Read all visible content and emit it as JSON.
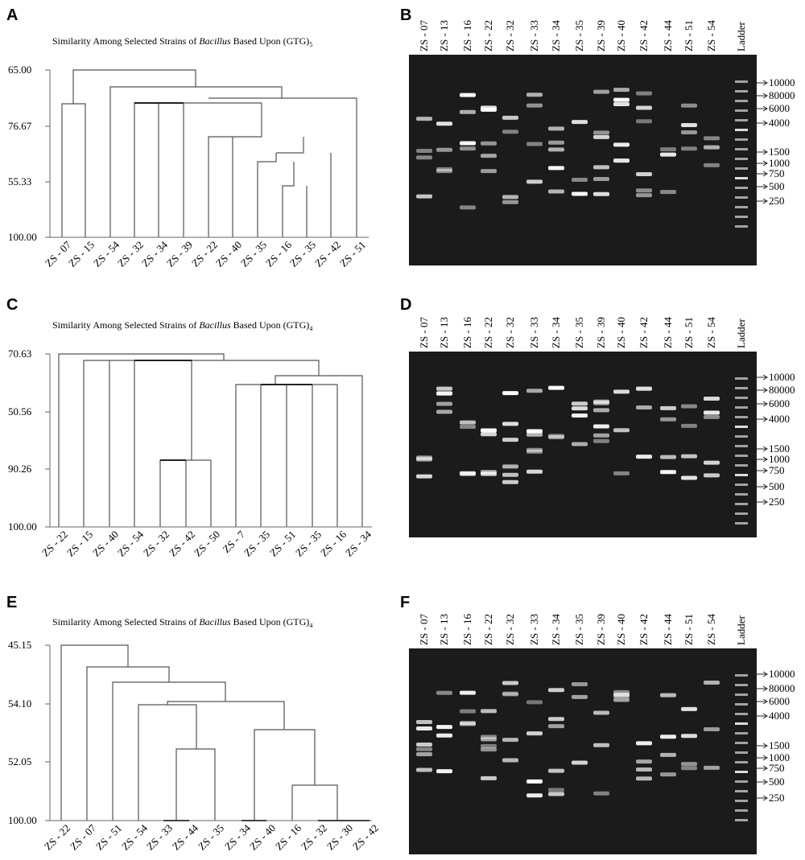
{
  "panels": [
    {
      "letter": "A",
      "title": [
        "Similarity Among Selected Strains of ",
        "Bacillus",
        " Based Upon (GTG)",
        "5"
      ],
      "y_labels": [
        "65.00",
        "76.67",
        "55.33",
        "100.00"
      ],
      "x_labels": [
        "ZS - 07",
        "ZS - 15",
        "ZS - 54",
        "ZS - 32",
        "ZS - 34",
        "ZS - 39",
        "ZS - 22",
        "ZS - 40",
        "ZS - 35",
        "ZS - 16",
        "ZS - 35",
        "ZS - 42",
        "ZS - 51"
      ]
    },
    {
      "letter": "B",
      "lanes": [
        "ZS - 07",
        "ZS - 13",
        "ZS - 16",
        "ZS - 22",
        "ZS - 32",
        "ZS - 33",
        "ZS - 34",
        "ZS - 35",
        "ZS - 39",
        "ZS - 40",
        "ZS - 42",
        "ZS - 44",
        "ZS - 51",
        "ZS - 54",
        "Ladder"
      ],
      "ladder": [
        "10000",
        "80000",
        "6000",
        "4000",
        "1500",
        "1000",
        "750",
        "500",
        "250"
      ]
    },
    {
      "letter": "C",
      "title": [
        "Similarity Among Selected Strains of ",
        "Bacillus",
        " Based Upon (GTG)",
        "4"
      ],
      "y_labels": [
        "70.63",
        "50.56",
        "90.26",
        "100.00"
      ],
      "x_labels": [
        "ZS - 22",
        "ZS - 15",
        "ZS - 40",
        "ZS - 54",
        "ZS - 32",
        "ZS - 42",
        "ZS - 50",
        "ZS - 7",
        "ZS - 35",
        "ZS - 51",
        "ZS - 35",
        "ZS - 16",
        "ZS - 34"
      ]
    },
    {
      "letter": "D",
      "lanes": [
        "ZS - 07",
        "ZS - 13",
        "ZS - 16",
        "ZS - 22",
        "ZS - 32",
        "ZS - 33",
        "ZS - 34",
        "ZS - 35",
        "ZS - 39",
        "ZS - 40",
        "ZS - 42",
        "ZS - 44",
        "ZS - 51",
        "ZS - 54",
        "Ladder"
      ],
      "ladder": [
        "10000",
        "80000",
        "6000",
        "4000",
        "1500",
        "1000",
        "750",
        "500",
        "250"
      ]
    },
    {
      "letter": "E",
      "title": [
        "Similarity Among Selected Strains of ",
        "Bacillus",
        " Based Upon (GTG)",
        "4"
      ],
      "y_labels": [
        "45.15",
        "54.10",
        "52.05",
        "100.00"
      ],
      "x_labels": [
        "ZS - 22",
        "ZS - 07",
        "ZS - 51",
        "ZS - 54",
        "ZS - 33",
        "ZS - 44",
        "ZS - 35",
        "ZS - 34",
        "ZS - 40",
        "ZS - 16",
        "ZS - 32",
        "ZS - 30",
        "ZS - 42"
      ]
    },
    {
      "letter": "F",
      "lanes": [
        "ZS - 07",
        "ZS - 13",
        "ZS - 16",
        "ZS - 22",
        "ZS - 32",
        "ZS - 33",
        "ZS - 34",
        "ZS - 35",
        "ZS - 39",
        "ZS - 40",
        "ZS - 42",
        "ZS - 44",
        "ZS - 51",
        "ZS - 54",
        "Ladder"
      ],
      "ladder": [
        "10000",
        "80000",
        "6000",
        "4000",
        "1500",
        "1000",
        "750",
        "500",
        "250"
      ]
    }
  ]
}
